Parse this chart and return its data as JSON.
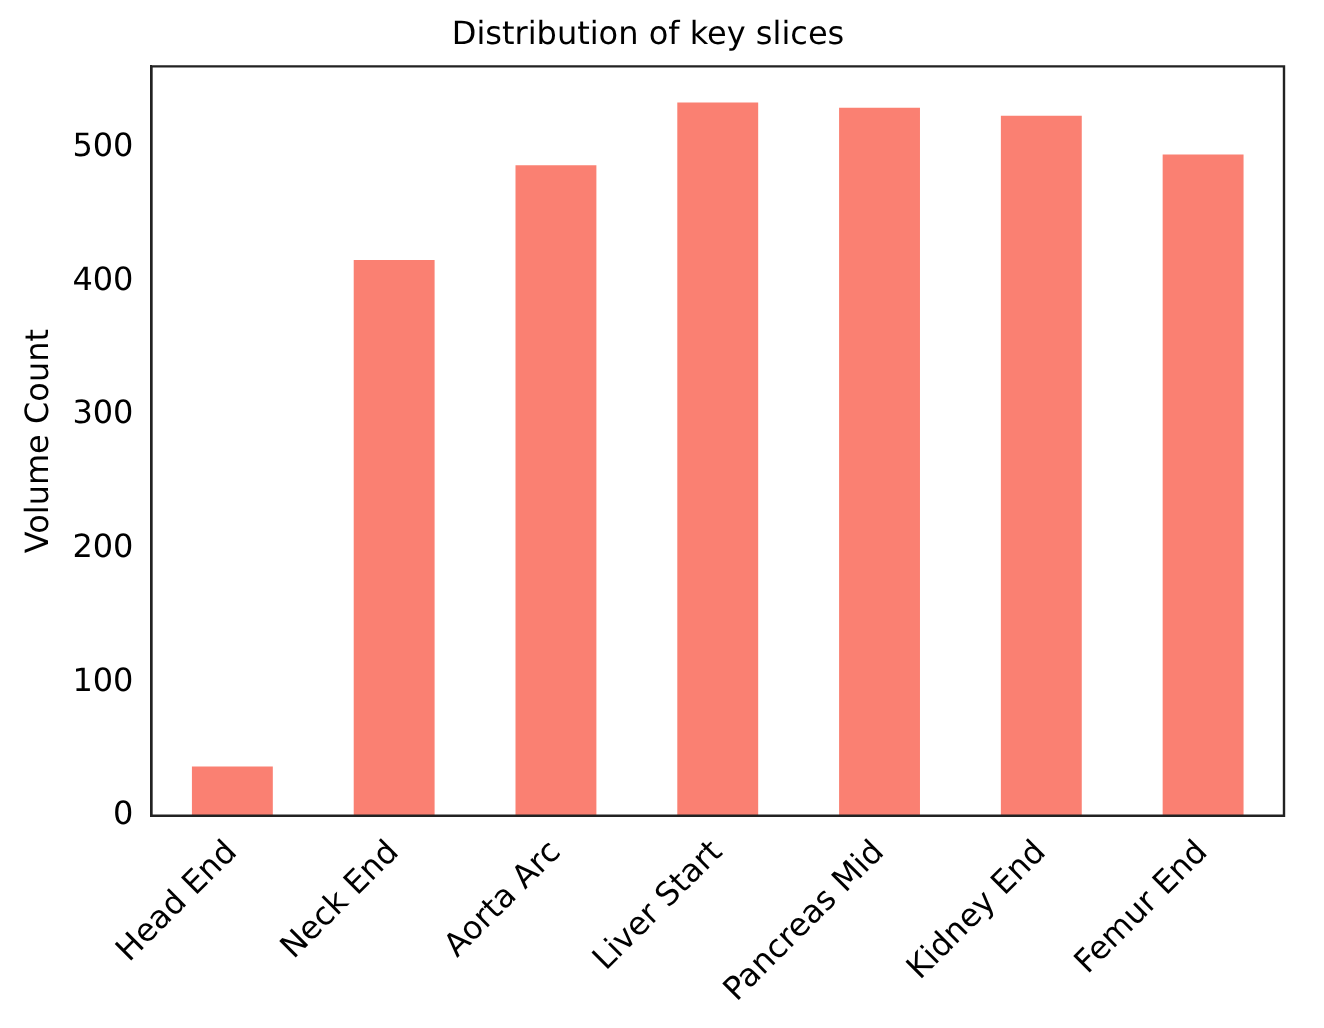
{
  "chart_data": {
    "type": "bar",
    "title": "Distribution of key slices",
    "ylabel": "Volume Count",
    "categories": [
      "Head End",
      "Neck End",
      "Aorta Arc",
      "Liver Start",
      "Pancreas Mid",
      "Kidney End",
      "Femur End"
    ],
    "values": [
      37,
      416,
      487,
      534,
      530,
      524,
      495
    ],
    "color": "#fa8072",
    "ylim": [
      0,
      561
    ],
    "yticks": [
      0,
      100,
      200,
      300,
      400,
      500
    ],
    "grid": false,
    "legend": false
  }
}
